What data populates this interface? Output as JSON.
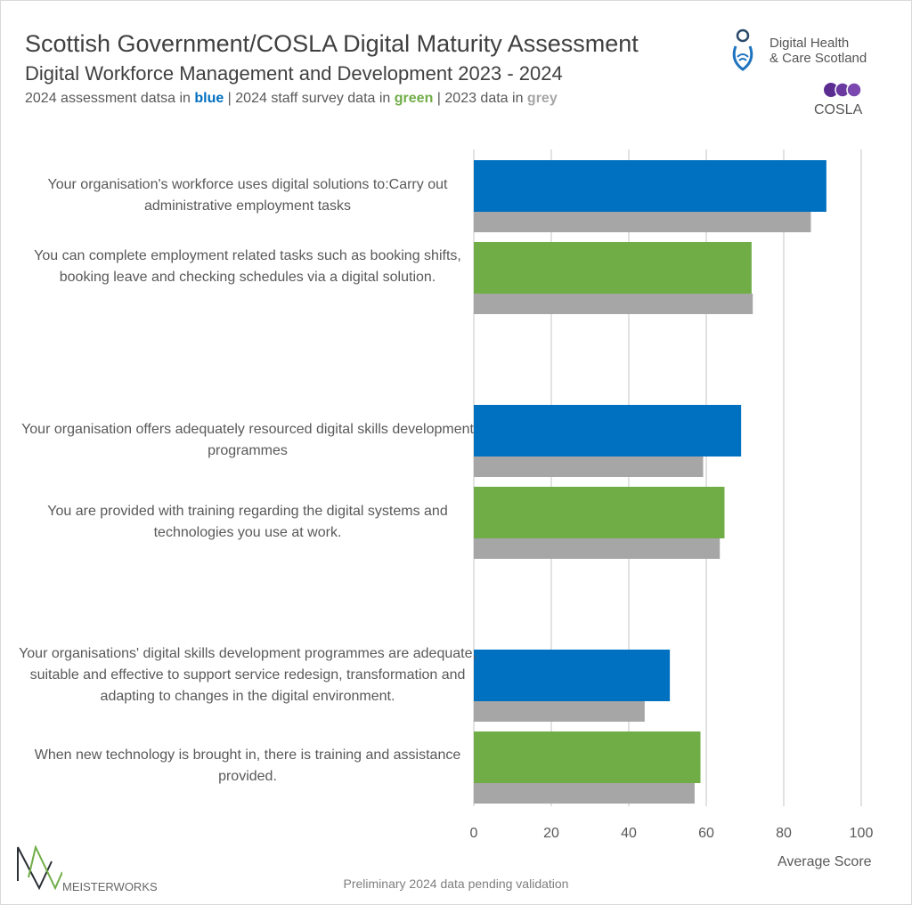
{
  "header": {
    "title": "Scottish Government/COSLA Digital Maturity Assessment",
    "subtitle": "Digital Workforce Management and Development 2023 - 2024",
    "legend_prefix": "2024 assessment datsa in ",
    "legend_blue": "blue",
    "legend_mid1": " | 2024 staff survey data in ",
    "legend_green": "green",
    "legend_mid2": " | 2023 data in ",
    "legend_grey": "grey"
  },
  "logos": {
    "dhcs_line1": "Digital Health",
    "dhcs_line2": "& Care Scotland",
    "cosla": "COSLA",
    "meisterworks": "MEISTERWORKS"
  },
  "footer": "Preliminary 2024 data pending validation",
  "colors": {
    "blue": "#0070c0",
    "green": "#70ad47",
    "grey": "#a6a6a6"
  },
  "chart_data": {
    "type": "bar",
    "orientation": "horizontal",
    "xlabel": "Average Score",
    "xlim": [
      0,
      100
    ],
    "xticks": [
      0,
      20,
      40,
      60,
      80,
      100
    ],
    "grid": true,
    "categories": [
      "Your organisation's workforce uses digital solutions to:Carry out administrative employment  tasks",
      "You can complete employment related tasks such as booking shifts, booking leave and checking schedules via a digital solution.",
      "Your organisation offers adequately resourced digital skills development programmes",
      "You are provided with training regarding the digital systems and technologies you use at work.",
      "Your organisations' digital skills development programmes are adequate, suitable and effective to support service redesign, transformation and adapting to changes in the digital environment.",
      "When new technology is brought in, there is training and assistance provided."
    ],
    "series": [
      {
        "colors": [
          "blue",
          "green",
          "blue",
          "green",
          "blue",
          "green"
        ],
        "values": [
          91.0,
          71.7,
          69.0,
          64.7,
          50.6,
          58.5
        ]
      },
      {
        "color": "grey",
        "values": [
          87.0,
          72.0,
          59.2,
          63.5,
          44.1,
          57.0
        ]
      }
    ]
  }
}
